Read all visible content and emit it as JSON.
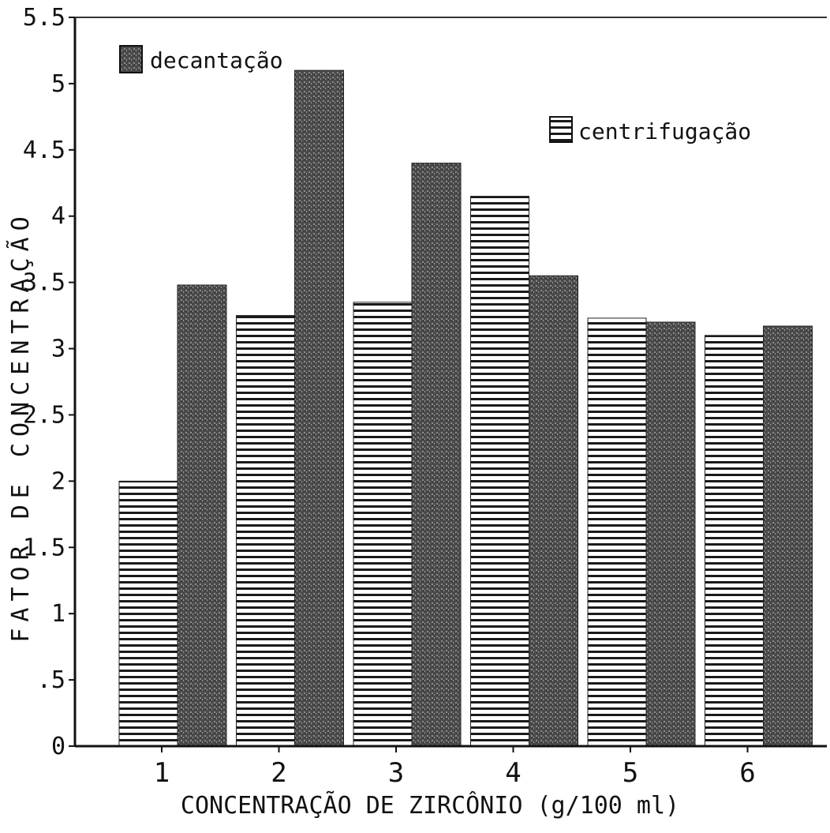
{
  "chart_data": {
    "type": "bar",
    "categories": [
      "1",
      "2",
      "3",
      "4",
      "5",
      "6"
    ],
    "series": [
      {
        "name": "centrifugação",
        "pattern": "horizontal-stripes",
        "values": [
          2.0,
          3.25,
          3.35,
          4.15,
          3.23,
          3.1
        ]
      },
      {
        "name": "decantação",
        "pattern": "dark-stipple",
        "values": [
          3.48,
          5.1,
          4.4,
          3.55,
          3.2,
          3.17
        ]
      }
    ],
    "title": "",
    "xlabel": "CONCENTRAÇÃO DE ZIRCÔNIO (g/100 ml)",
    "ylabel": "FATOR DE CONCENTRAÇÃO",
    "ylim": [
      0,
      5.5
    ],
    "yticks": [
      "0",
      ".5",
      "1",
      "1.5",
      "2",
      "2.5",
      "3",
      "3.5",
      "4",
      "4.5",
      "5",
      "5.5"
    ],
    "grid": false,
    "legend_placement": "inside-top",
    "colors": {
      "centrifugacao_bg": "#ffffff",
      "centrifugacao_stripe": "#1a1a1a",
      "decantacao_fill": "#5a5a5a",
      "axis": "#111111"
    }
  }
}
